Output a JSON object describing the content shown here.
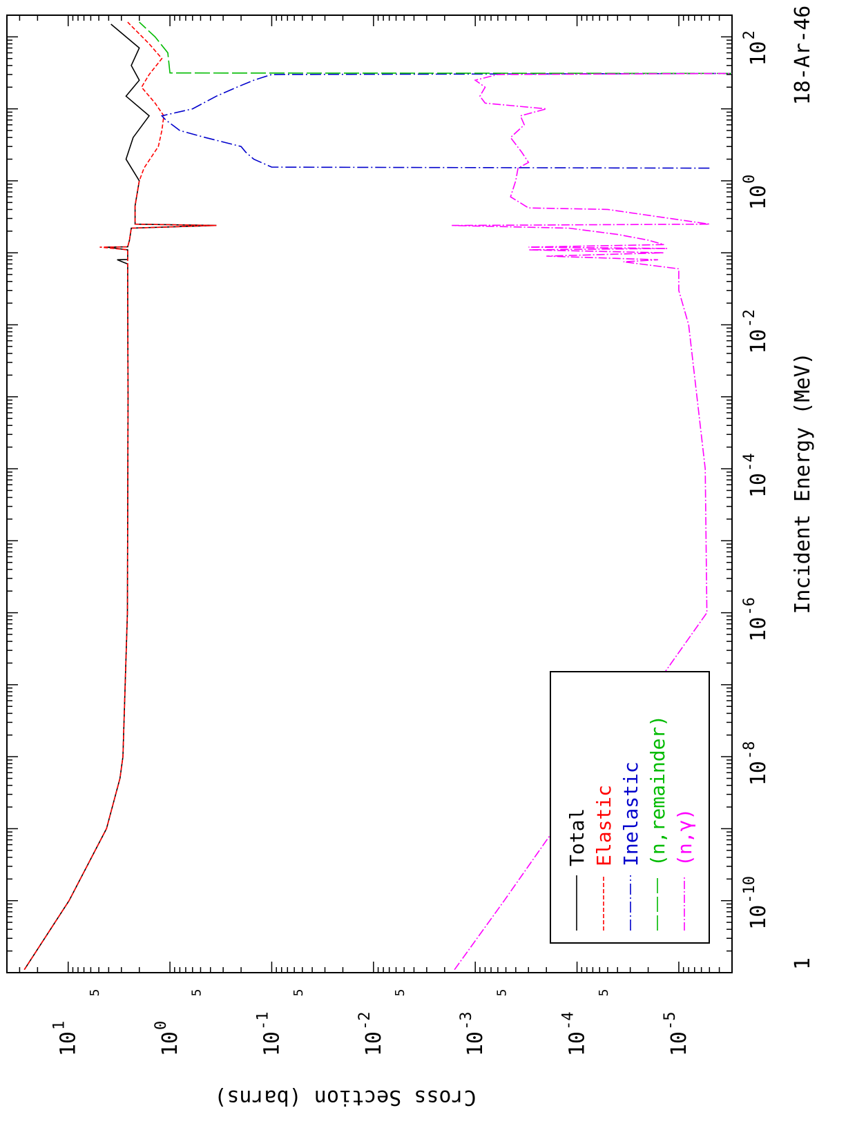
{
  "chart_data": {
    "type": "line",
    "title": "18-Ar-46",
    "xlabel": "Incident Energy (MeV)",
    "ylabel": "Cross Section (barns)",
    "x_scale": "log",
    "y_scale": "log",
    "xlim": [
      1e-11,
      200
    ],
    "ylim": [
      3e-06,
      40
    ],
    "grid": false,
    "legend_position": "bottom-left",
    "x_ticks": [
      {
        "value": 1e-10,
        "base": "10",
        "exp": "-10"
      },
      {
        "value": 1e-08,
        "base": "10",
        "exp": "-8"
      },
      {
        "value": 1e-06,
        "base": "10",
        "exp": "-6"
      },
      {
        "value": 0.0001,
        "base": "10",
        "exp": "-4"
      },
      {
        "value": 0.01,
        "base": "10",
        "exp": "-2"
      },
      {
        "value": 1,
        "base": "10",
        "exp": "0"
      },
      {
        "value": 100,
        "base": "10",
        "exp": "2"
      }
    ],
    "x_corner_label": "1",
    "y_ticks": [
      {
        "value": 10,
        "base": "10",
        "exp": "1"
      },
      {
        "value": 1,
        "base": "10",
        "exp": "0"
      },
      {
        "value": 0.1,
        "base": "10",
        "exp": "-1"
      },
      {
        "value": 0.01,
        "base": "10",
        "exp": "-2"
      },
      {
        "value": 0.001,
        "base": "10",
        "exp": "-3"
      },
      {
        "value": 0.0001,
        "base": "10",
        "exp": "-4"
      },
      {
        "value": 1e-05,
        "base": "10",
        "exp": "-5"
      }
    ],
    "y_minor_label": "5",
    "series": [
      {
        "name": "Total",
        "color": "#000000",
        "dash": "",
        "points": [
          [
            1.1e-11,
            27
          ],
          [
            1e-10,
            9.8
          ],
          [
            1e-09,
            4.2
          ],
          [
            5e-09,
            3.1
          ],
          [
            1e-08,
            2.9
          ],
          [
            1e-06,
            2.62
          ],
          [
            0.001,
            2.58
          ],
          [
            0.03,
            2.6
          ],
          [
            0.07,
            2.6
          ],
          [
            0.08,
            3.3
          ],
          [
            0.081,
            2.6
          ],
          [
            0.11,
            2.6
          ],
          [
            0.12,
            4.2
          ],
          [
            0.121,
            2.6
          ],
          [
            0.15,
            2.5
          ],
          [
            0.22,
            2.4
          ],
          [
            0.24,
            0.35
          ],
          [
            0.25,
            2.2
          ],
          [
            0.45,
            2.2
          ],
          [
            1,
            2.0
          ],
          [
            2,
            2.7
          ],
          [
            4,
            2.3
          ],
          [
            8,
            1.6
          ],
          [
            15,
            2.7
          ],
          [
            25,
            2.0
          ],
          [
            40,
            2.4
          ],
          [
            70,
            2.0
          ],
          [
            150,
            3.8
          ]
        ]
      },
      {
        "name": "Elastic",
        "color": "#ff0000",
        "dash": "6,3",
        "points": [
          [
            1.1e-11,
            27
          ],
          [
            1e-10,
            9.8
          ],
          [
            1e-09,
            4.2
          ],
          [
            5e-09,
            3.1
          ],
          [
            1e-08,
            2.9
          ],
          [
            1e-06,
            2.62
          ],
          [
            0.001,
            2.58
          ],
          [
            0.03,
            2.6
          ],
          [
            0.07,
            2.6
          ],
          [
            0.11,
            2.6
          ],
          [
            0.12,
            4.9
          ],
          [
            0.121,
            2.6
          ],
          [
            0.15,
            2.5
          ],
          [
            0.22,
            2.4
          ],
          [
            0.24,
            0.35
          ],
          [
            0.25,
            2.2
          ],
          [
            0.45,
            2.2
          ],
          [
            1,
            2.0
          ],
          [
            1.5,
            1.8
          ],
          [
            3,
            1.3
          ],
          [
            5,
            1.2
          ],
          [
            8,
            1.15
          ],
          [
            12,
            1.4
          ],
          [
            20,
            1.9
          ],
          [
            30,
            1.6
          ],
          [
            50,
            1.2
          ],
          [
            80,
            1.6
          ],
          [
            160,
            2.6
          ]
        ]
      },
      {
        "name": "Inelastic",
        "color": "#0000cc",
        "dash": "16,4,2,4",
        "points": [
          [
            1.5,
            5e-06
          ],
          [
            1.55,
            0.1
          ],
          [
            2,
            0.15
          ],
          [
            2.5,
            0.18
          ],
          [
            3,
            0.2
          ],
          [
            4,
            0.45
          ],
          [
            5,
            0.8
          ],
          [
            7,
            1.1
          ],
          [
            8,
            1.2
          ],
          [
            10,
            0.6
          ],
          [
            15,
            0.35
          ],
          [
            20,
            0.22
          ],
          [
            25,
            0.15
          ],
          [
            30,
            0.1
          ],
          [
            31,
            3e-06
          ]
        ]
      },
      {
        "name": "(n,remainder)",
        "color": "#00bb00",
        "dash": "22,5",
        "points": [
          [
            31,
            3e-06
          ],
          [
            31.5,
            1.0
          ],
          [
            60,
            1.05
          ],
          [
            100,
            1.4
          ],
          [
            160,
            2.0
          ]
        ]
      },
      {
        "name": "(n,γ)",
        "color": "#ff00ff",
        "dash": "12,3,2,3",
        "points": [
          [
            1.1e-11,
            0.0016
          ],
          [
            1e-10,
            0.00052
          ],
          [
            1e-08,
            5.3e-05
          ],
          [
            1e-06,
            5.3e-06
          ],
          [
            0.0001,
            5.5e-06
          ],
          [
            0.01,
            8e-06
          ],
          [
            0.03,
            1e-05
          ],
          [
            0.06,
            1e-05
          ],
          [
            0.075,
            3.5e-05
          ],
          [
            0.08,
            1.6e-05
          ],
          [
            0.09,
            0.0002
          ],
          [
            0.1,
            1.4e-05
          ],
          [
            0.11,
            0.0003
          ],
          [
            0.115,
            1.3e-05
          ],
          [
            0.12,
            0.0003
          ],
          [
            0.13,
            1.4e-05
          ],
          [
            0.15,
            2e-05
          ],
          [
            0.18,
            4e-05
          ],
          [
            0.22,
            0.00012
          ],
          [
            0.24,
            0.0017
          ],
          [
            0.25,
            5e-06
          ],
          [
            0.4,
            5e-05
          ],
          [
            0.42,
            0.0003
          ],
          [
            0.6,
            0.00045
          ],
          [
            1,
            0.0004
          ],
          [
            1.5,
            0.00038
          ],
          [
            1.8,
            0.0003
          ],
          [
            2.5,
            0.00035
          ],
          [
            4,
            0.00045
          ],
          [
            6,
            0.00033
          ],
          [
            8,
            0.00036
          ],
          [
            10,
            0.0002
          ],
          [
            12,
            0.0008
          ],
          [
            15,
            0.0009
          ],
          [
            20,
            0.0008
          ],
          [
            25,
            0.001
          ],
          [
            30,
            0.0006
          ],
          [
            31,
            3e-06
          ]
        ]
      }
    ]
  }
}
